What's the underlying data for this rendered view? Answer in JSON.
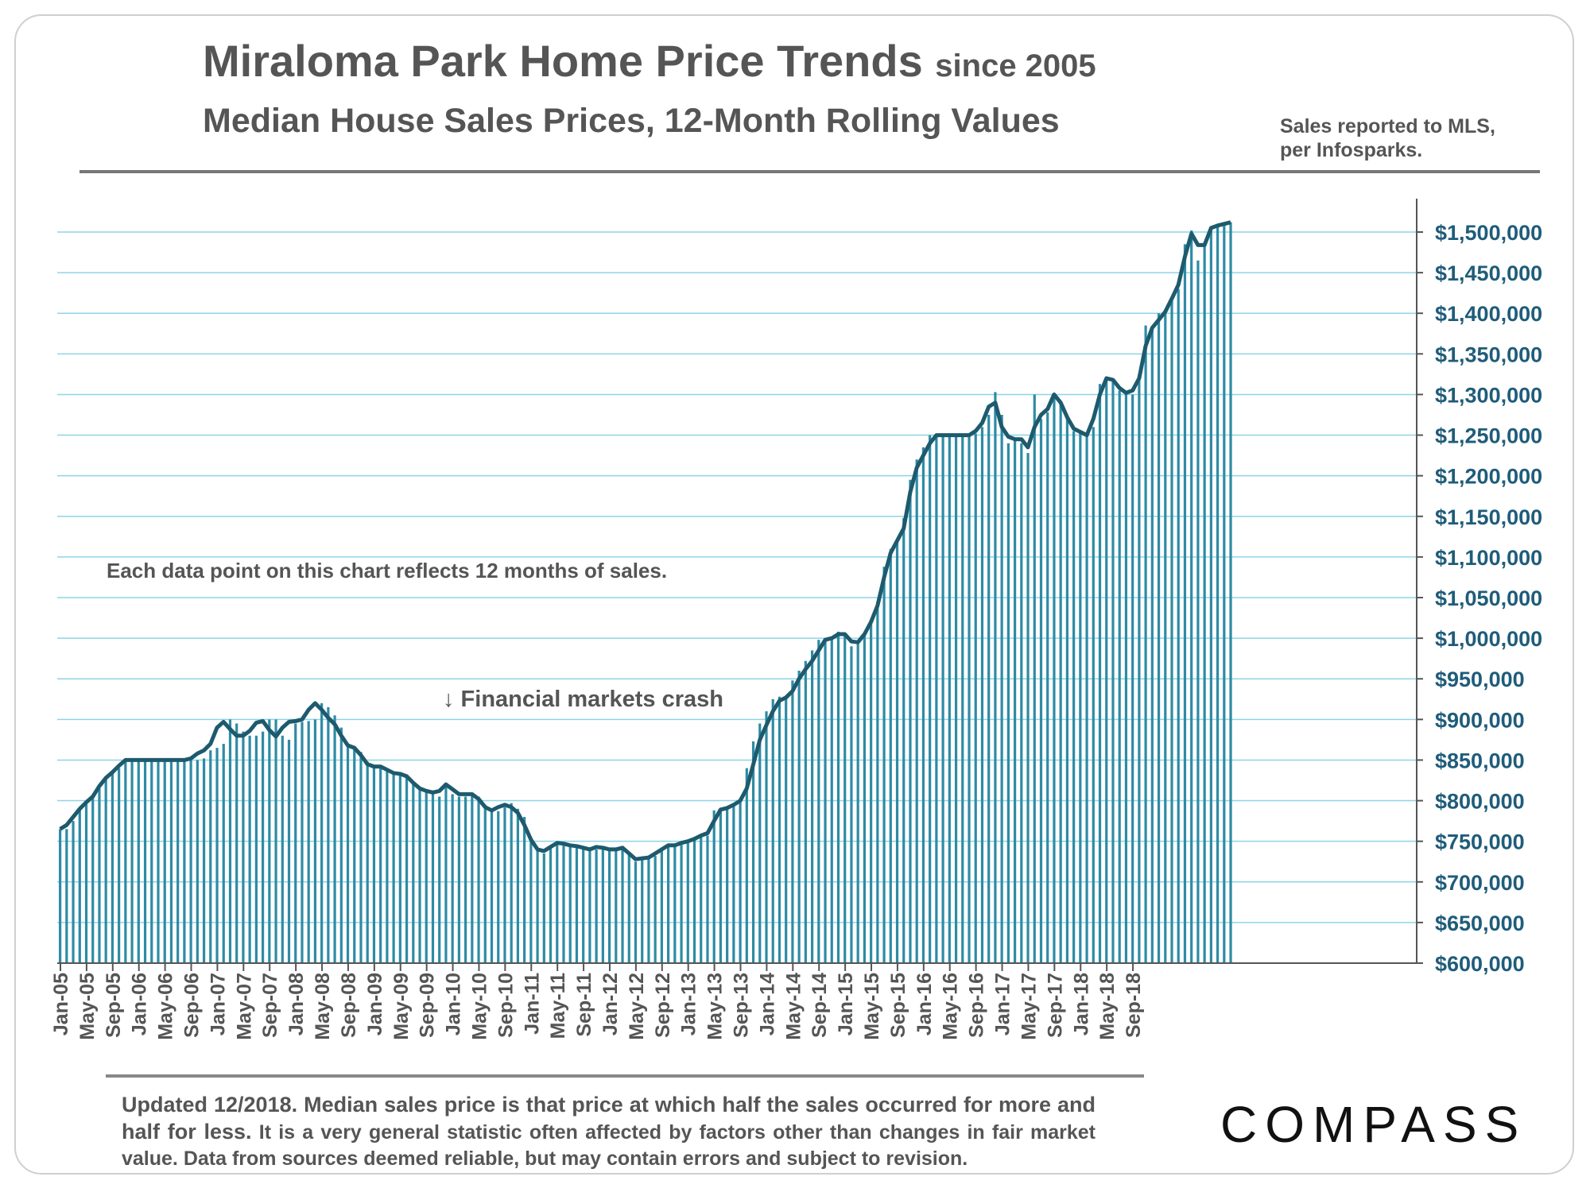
{
  "header": {
    "title": "Miraloma Park Home Price Trends",
    "title_suffix": "since 2005",
    "subtitle": "Median House Sales Prices, 12-Month Rolling Values",
    "source_line1": "Sales reported to MLS,",
    "source_line2": "per Infosparks."
  },
  "footer": {
    "note_strong": "Updated 12/2018. Median sales price is that price at which half the sales occurred for more and half for less.",
    "note_rest": "It is a very general statistic often affected by factors other than changes in fair market value. Data from sources deemed reliable, but may contain errors and subject to revision.",
    "logo": "COMPASS"
  },
  "colors": {
    "bar": "#2e8ba4",
    "line": "#1e5a6e",
    "grid": "#8ed4e6",
    "tick_text": "#1f5c7a"
  },
  "chart_data": {
    "type": "bar",
    "title": "Miraloma Park Home Price Trends since 2005",
    "subtitle": "Median House Sales Prices, 12-Month Rolling Values",
    "xlabel": "",
    "ylabel": "",
    "ylim": [
      600000,
      1500000
    ],
    "grid": true,
    "y_axis_position": "right",
    "y_ticks": [
      "$600,000",
      "$650,000",
      "$700,000",
      "$750,000",
      "$800,000",
      "$850,000",
      "$900,000",
      "$950,000",
      "$1,000,000",
      "$1,050,000",
      "$1,100,000",
      "$1,150,000",
      "$1,200,000",
      "$1,250,000",
      "$1,300,000",
      "$1,350,000",
      "$1,400,000",
      "$1,450,000",
      "$1,500,000"
    ],
    "x_tick_labels": [
      "Jan-05",
      "May-05",
      "Sep-05",
      "Jan-06",
      "May-06",
      "Sep-06",
      "Jan-07",
      "May-07",
      "Sep-07",
      "Jan-08",
      "May-08",
      "Sep-08",
      "Jan-09",
      "May-09",
      "Sep-09",
      "Jan-10",
      "May-10",
      "Sep-10",
      "Jan-11",
      "May-11",
      "Sep-11",
      "Jan-12",
      "May-12",
      "Sep-12",
      "Jan-13",
      "May-13",
      "Sep-13",
      "Jan-14",
      "May-14",
      "Sep-14",
      "Jan-15",
      "May-15",
      "Sep-15",
      "Jan-16",
      "May-16",
      "Sep-16",
      "Jan-17",
      "May-17",
      "Sep-17",
      "Jan-18",
      "May-18",
      "Sep-18"
    ],
    "start_month": "Jan-05",
    "annotations": [
      {
        "text": "Each data point on this chart reflects 12 months of sales.",
        "at": "Jan-05"
      },
      {
        "text": "↓ Financial markets crash",
        "at": "Jan-09"
      }
    ],
    "series": [
      {
        "name": "Monthly 12-month rolling median (bars)",
        "type": "bar",
        "values": [
          765000,
          765000,
          775000,
          790000,
          800000,
          805000,
          815000,
          830000,
          835000,
          840000,
          850000,
          850000,
          850000,
          850000,
          850000,
          850000,
          850000,
          850000,
          850000,
          850000,
          850000,
          850000,
          852000,
          862000,
          865000,
          870000,
          900000,
          895000,
          885000,
          880000,
          880000,
          885000,
          900000,
          900000,
          880000,
          875000,
          895000,
          897000,
          898000,
          900000,
          920000,
          915000,
          905000,
          890000,
          870000,
          866000,
          860000,
          848000,
          842000,
          842000,
          840000,
          835000,
          833000,
          830000,
          823000,
          815000,
          812000,
          810000,
          805000,
          820000,
          808000,
          805000,
          805000,
          808000,
          805000,
          795000,
          790000,
          787000,
          792000,
          797000,
          790000,
          780000,
          755000,
          738000,
          735000,
          743000,
          748000,
          745000,
          745000,
          743000,
          740000,
          738000,
          740000,
          743000,
          738000,
          738000,
          740000,
          733000,
          725000,
          727000,
          728000,
          732000,
          742000,
          745000,
          745000,
          748000,
          748000,
          752000,
          758000,
          757000,
          788000,
          790000,
          792000,
          795000,
          800000,
          840000,
          873000,
          895000,
          910000,
          925000,
          928000,
          928000,
          948000,
          960000,
          972000,
          985000,
          998000,
          1000000,
          1000000,
          1008000,
          1005000,
          990000,
          993000,
          1005000,
          1020000,
          1045000,
          1088000,
          1110000,
          1120000,
          1148000,
          1195000,
          1220000,
          1235000,
          1250000,
          1250000,
          1250000,
          1250000,
          1250000,
          1250000,
          1250000,
          1252000,
          1260000,
          1275000,
          1303000,
          1275000,
          1240000,
          1245000,
          1240000,
          1228000,
          1300000,
          1270000,
          1278000,
          1300000,
          1290000,
          1270000,
          1255000,
          1252000,
          1250000,
          1260000,
          1313000,
          1322000,
          1318000,
          1305000,
          1300000,
          1300000,
          1320000,
          1385000,
          1380000,
          1400000,
          1405000,
          1420000,
          1430000,
          1485000,
          1502000,
          1465000,
          1485000,
          1505000,
          1508000,
          1510000,
          1512000
        ]
      },
      {
        "name": "Trend line",
        "type": "line",
        "values": [
          765000,
          770000,
          780000,
          790000,
          798000,
          805000,
          818000,
          828000,
          835000,
          843000,
          850000,
          850000,
          850000,
          850000,
          850000,
          850000,
          850000,
          850000,
          850000,
          850000,
          852000,
          858000,
          862000,
          870000,
          890000,
          897000,
          888000,
          880000,
          880000,
          886000,
          896000,
          898000,
          887000,
          879000,
          890000,
          897000,
          898000,
          900000,
          912000,
          920000,
          912000,
          902000,
          894000,
          880000,
          868000,
          865000,
          856000,
          845000,
          842000,
          842000,
          838000,
          834000,
          833000,
          830000,
          822000,
          815000,
          812000,
          810000,
          812000,
          820000,
          814000,
          808000,
          808000,
          808000,
          802000,
          792000,
          788000,
          792000,
          795000,
          792000,
          785000,
          770000,
          752000,
          740000,
          738000,
          743000,
          748000,
          747000,
          745000,
          744000,
          742000,
          740000,
          743000,
          742000,
          740000,
          740000,
          742000,
          735000,
          728000,
          729000,
          730000,
          735000,
          740000,
          745000,
          745000,
          748000,
          750000,
          753000,
          757000,
          760000,
          775000,
          789000,
          791000,
          795000,
          800000,
          815000,
          845000,
          875000,
          893000,
          910000,
          923000,
          927000,
          935000,
          950000,
          962000,
          972000,
          985000,
          998000,
          1000000,
          1005000,
          1005000,
          996000,
          995000,
          1005000,
          1020000,
          1040000,
          1075000,
          1105000,
          1120000,
          1135000,
          1180000,
          1210000,
          1225000,
          1240000,
          1250000,
          1250000,
          1250000,
          1250000,
          1250000,
          1250000,
          1255000,
          1265000,
          1285000,
          1290000,
          1260000,
          1248000,
          1245000,
          1245000,
          1235000,
          1260000,
          1275000,
          1282000,
          1300000,
          1290000,
          1272000,
          1258000,
          1254000,
          1250000,
          1270000,
          1300000,
          1320000,
          1318000,
          1308000,
          1302000,
          1305000,
          1320000,
          1360000,
          1382000,
          1392000,
          1402000,
          1418000,
          1435000,
          1470000,
          1498000,
          1484000,
          1484000,
          1505000,
          1508000,
          1510000,
          1512000
        ]
      }
    ]
  }
}
